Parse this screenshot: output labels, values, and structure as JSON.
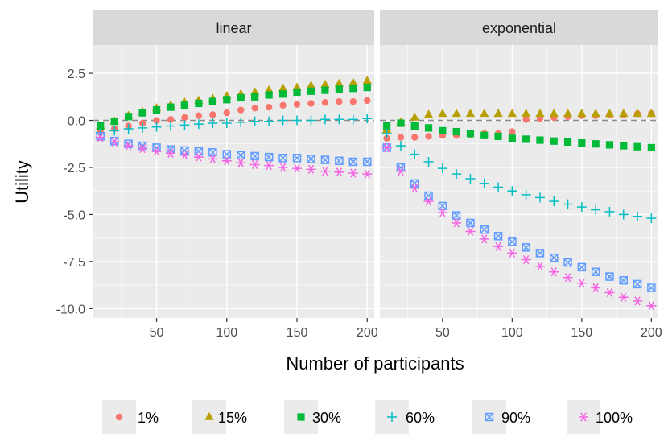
{
  "chart_data": {
    "type": "scatter",
    "facets": [
      "linear",
      "exponential"
    ],
    "xlabel": "Number of participants",
    "ylabel": "Utility",
    "xlim": [
      5,
      205
    ],
    "ylim": [
      -10.5,
      4.0
    ],
    "xticks": [
      50,
      100,
      150,
      200
    ],
    "xtick_labels": [
      "50",
      "100",
      "150",
      "200"
    ],
    "yticks": [
      2.5,
      0,
      -2.5,
      -5,
      -7.5,
      -10
    ],
    "ytick_labels": [
      "2.5",
      "0.0",
      "-2.5",
      "-5.0",
      "-7.5",
      "-10.0"
    ],
    "reference_line_y": 0,
    "legend_position": "bottom",
    "x": [
      10,
      20,
      30,
      40,
      50,
      60,
      70,
      80,
      90,
      100,
      110,
      120,
      130,
      140,
      150,
      160,
      170,
      180,
      190,
      200
    ],
    "series": [
      {
        "name": "1%",
        "color": "#F8766D",
        "shape": "circle",
        "linear": [
          -0.6,
          -0.45,
          -0.3,
          -0.15,
          0.0,
          0.05,
          0.15,
          0.25,
          0.3,
          0.4,
          0.55,
          0.65,
          0.7,
          0.8,
          0.85,
          0.9,
          0.95,
          1.0,
          1.0,
          1.05
        ],
        "exponential": [
          -0.95,
          -0.9,
          -0.9,
          -0.85,
          -0.8,
          -0.8,
          -0.75,
          -0.7,
          -0.7,
          -0.6,
          0.05,
          0.1,
          0.15,
          0.2,
          0.25,
          0.25,
          0.3,
          0.3,
          0.35,
          0.35
        ]
      },
      {
        "name": "15%",
        "color": "#B79F00",
        "shape": "triangle",
        "linear": [
          -0.3,
          -0.05,
          0.25,
          0.45,
          0.65,
          0.8,
          0.95,
          1.05,
          1.15,
          1.3,
          1.4,
          1.5,
          1.6,
          1.7,
          1.75,
          1.85,
          1.9,
          1.95,
          2.0,
          2.1
        ],
        "exponential": [
          -0.5,
          -0.1,
          0.15,
          0.3,
          0.35,
          0.35,
          0.35,
          0.35,
          0.35,
          0.35,
          0.35,
          0.35,
          0.35,
          0.35,
          0.35,
          0.35,
          0.35,
          0.35,
          0.35,
          0.35
        ]
      },
      {
        "name": "30%",
        "color": "#00BA38",
        "shape": "square",
        "linear": [
          -0.3,
          -0.05,
          0.2,
          0.4,
          0.55,
          0.7,
          0.8,
          0.9,
          1.0,
          1.1,
          1.2,
          1.25,
          1.35,
          1.4,
          1.5,
          1.55,
          1.6,
          1.65,
          1.7,
          1.75
        ],
        "exponential": [
          -0.3,
          -0.15,
          -0.3,
          -0.4,
          -0.55,
          -0.6,
          -0.7,
          -0.8,
          -0.85,
          -0.95,
          -1.0,
          -1.05,
          -1.1,
          -1.15,
          -1.2,
          -1.25,
          -1.3,
          -1.35,
          -1.4,
          -1.45
        ]
      },
      {
        "name": "60%",
        "color": "#00BFC4",
        "shape": "plus",
        "linear": [
          -0.65,
          -0.55,
          -0.45,
          -0.4,
          -0.35,
          -0.3,
          -0.25,
          -0.2,
          -0.15,
          -0.15,
          -0.1,
          -0.05,
          -0.05,
          0.0,
          0.0,
          0.0,
          0.05,
          0.05,
          0.05,
          0.1
        ],
        "exponential": [
          -0.7,
          -1.35,
          -1.8,
          -2.2,
          -2.55,
          -2.85,
          -3.1,
          -3.35,
          -3.55,
          -3.75,
          -3.95,
          -4.1,
          -4.3,
          -4.45,
          -4.6,
          -4.75,
          -4.85,
          -5.0,
          -5.1,
          -5.2
        ]
      },
      {
        "name": "90%",
        "color": "#619CFF",
        "shape": "square-x",
        "linear": [
          -0.85,
          -1.1,
          -1.25,
          -1.35,
          -1.45,
          -1.55,
          -1.6,
          -1.65,
          -1.7,
          -1.8,
          -1.85,
          -1.9,
          -1.95,
          -2.0,
          -2.0,
          -2.05,
          -2.1,
          -2.15,
          -2.2,
          -2.2
        ],
        "exponential": [
          -1.45,
          -2.5,
          -3.35,
          -4.0,
          -4.55,
          -5.05,
          -5.45,
          -5.8,
          -6.15,
          -6.45,
          -6.75,
          -7.05,
          -7.3,
          -7.55,
          -7.8,
          -8.05,
          -8.3,
          -8.5,
          -8.7,
          -8.9
        ]
      },
      {
        "name": "100%",
        "color": "#F564E3",
        "shape": "asterisk",
        "linear": [
          -0.9,
          -1.15,
          -1.35,
          -1.5,
          -1.65,
          -1.75,
          -1.85,
          -1.95,
          -2.05,
          -2.15,
          -2.25,
          -2.35,
          -2.4,
          -2.5,
          -2.55,
          -2.6,
          -2.7,
          -2.75,
          -2.8,
          -2.85
        ],
        "exponential": [
          -1.45,
          -2.7,
          -3.6,
          -4.3,
          -4.9,
          -5.45,
          -5.9,
          -6.3,
          -6.7,
          -7.05,
          -7.4,
          -7.75,
          -8.05,
          -8.35,
          -8.65,
          -8.9,
          -9.15,
          -9.4,
          -9.6,
          -9.85
        ]
      }
    ]
  }
}
